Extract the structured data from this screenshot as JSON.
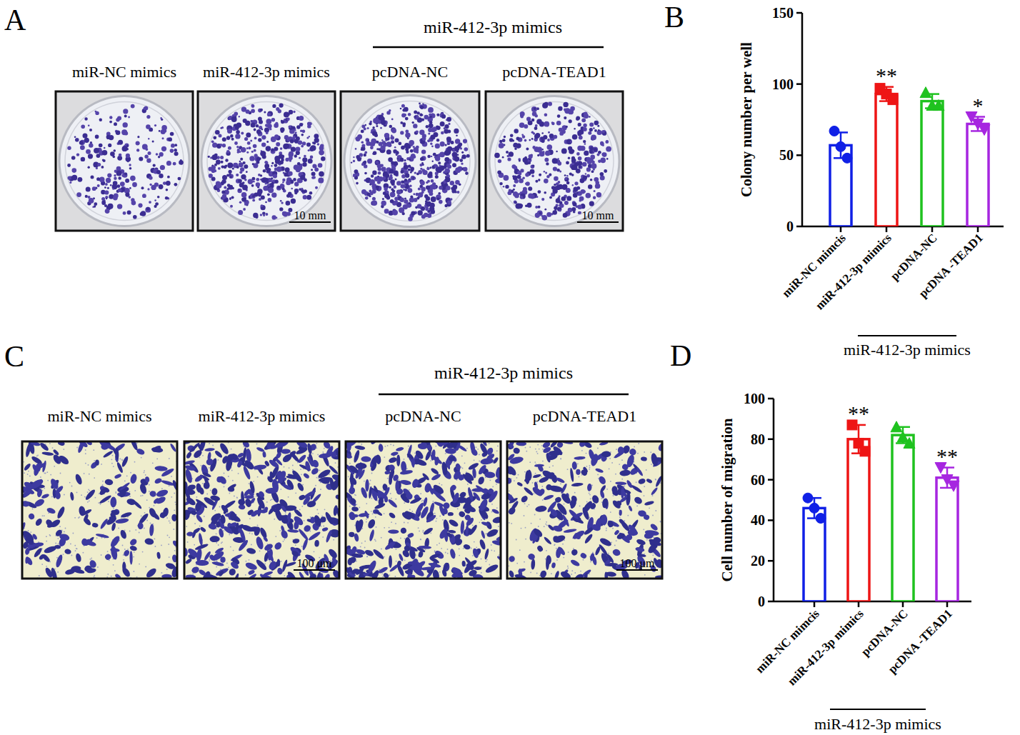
{
  "images": [
    {
      "panel": "A",
      "group_label": "miR-412-3p mimics",
      "labels": [
        "miR-NC mimics",
        "miR-412-3p mimics",
        "pcDNA-NC",
        "pcDNA-TEAD1"
      ],
      "scale_bar": "10 mm"
    },
    {
      "panel": "C",
      "group_label": "miR-412-3p mimics",
      "labels": [
        "miR-NC mimics",
        "miR-412-3p mimics",
        "pcDNA-NC",
        "pcDNA-TEAD1"
      ],
      "scale_bar": "100 μm"
    }
  ],
  "chart_data": [
    {
      "panel": "B",
      "type": "bar",
      "y_label": "Colony number per well",
      "categories": [
        "miR-NC mimcis",
        "miR-412-3p mimics",
        "pcDNA-NC",
        "pcDNA -TEAD1"
      ],
      "x_group_label": "miR-412-3p mimics",
      "values": [
        57,
        93,
        88,
        72
      ],
      "errors": [
        9,
        5,
        5,
        5
      ],
      "points": [
        [
          67,
          56,
          48
        ],
        [
          97,
          93,
          89
        ],
        [
          94,
          85,
          85
        ],
        [
          77,
          72,
          68
        ]
      ],
      "colors": [
        "#1020e6",
        "#ee1515",
        "#1fc21f",
        "#a626e0"
      ],
      "significance": [
        null,
        "**",
        null,
        "*"
      ],
      "ylim": [
        0,
        150
      ],
      "yticks": [
        0,
        50,
        100,
        150
      ]
    },
    {
      "panel": "D",
      "type": "bar",
      "y_label": "Cell number of migration",
      "categories": [
        "miR-NC mimcis",
        "miR-412-3p mimics",
        "pcDNA-NC",
        "pcDNA -TEAD1"
      ],
      "x_group_label": "miR-412-3p mimics",
      "values": [
        46,
        80,
        82,
        61
      ],
      "errors": [
        5,
        7,
        4,
        5
      ],
      "points": [
        [
          51,
          46,
          41
        ],
        [
          87,
          78,
          74
        ],
        [
          86,
          81,
          78
        ],
        [
          66,
          60,
          57
        ]
      ],
      "colors": [
        "#1020e6",
        "#ee1515",
        "#1fc21f",
        "#a626e0"
      ],
      "significance": [
        null,
        "**",
        null,
        "**"
      ],
      "ylim": [
        0,
        100
      ],
      "yticks": [
        0,
        20,
        40,
        60,
        80,
        100
      ]
    }
  ]
}
